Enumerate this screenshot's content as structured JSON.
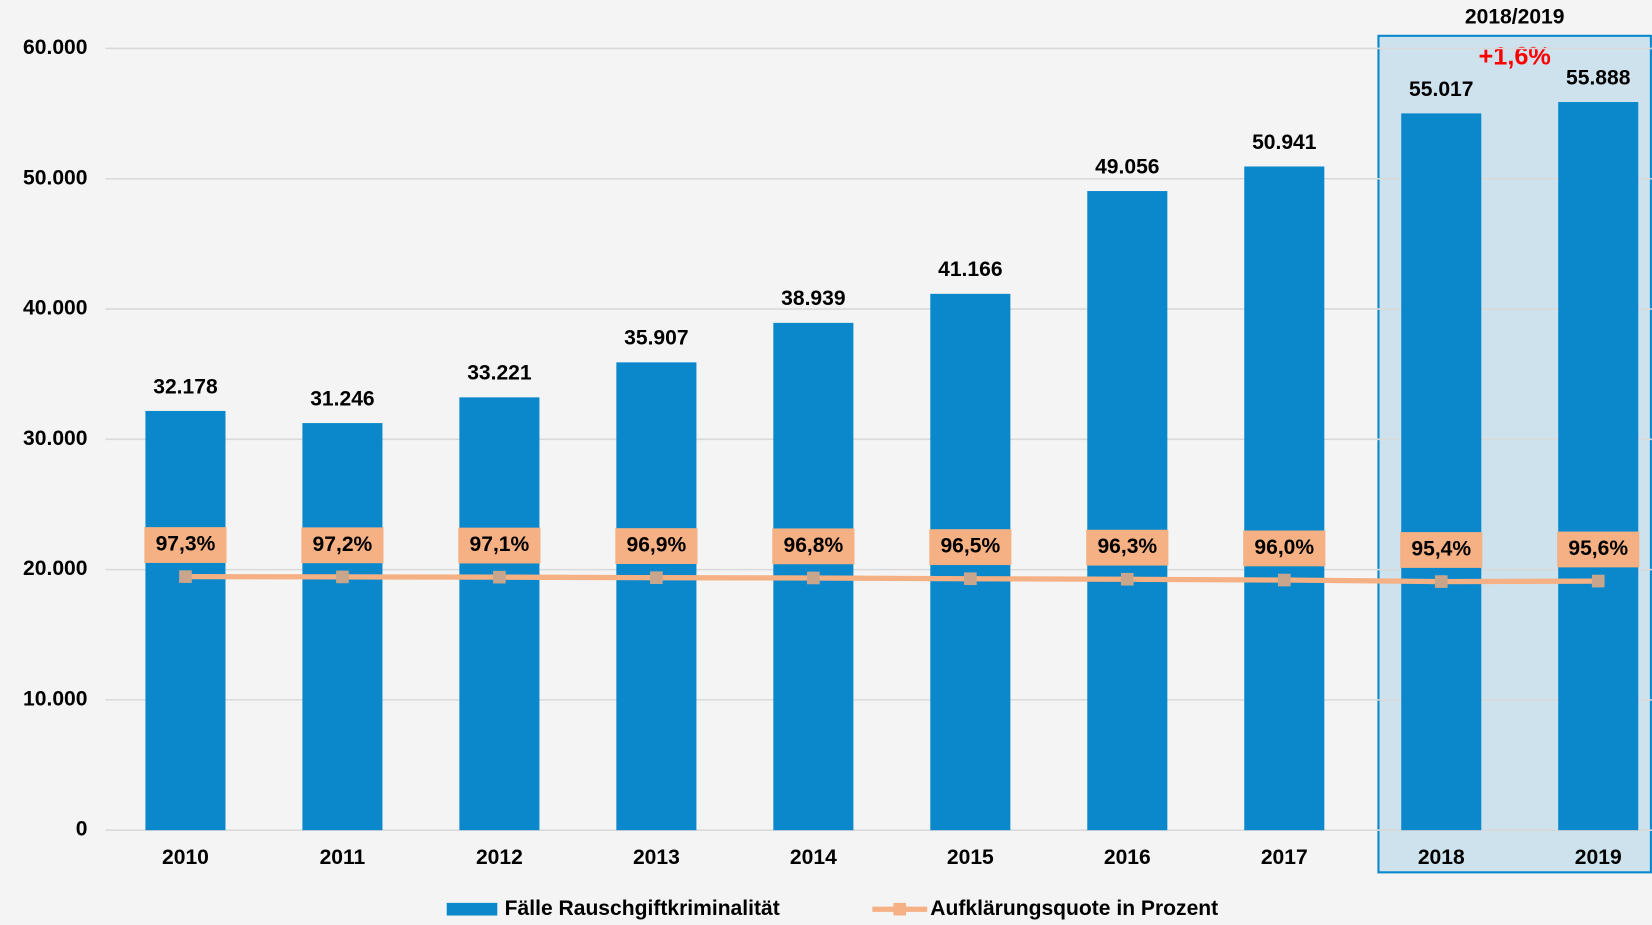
{
  "chart_data": {
    "type": "bar",
    "categories": [
      "2010",
      "2011",
      "2012",
      "2013",
      "2014",
      "2015",
      "2016",
      "2017",
      "2018",
      "2019"
    ],
    "series": [
      {
        "name": "Fälle Rauschgiftkriminalität",
        "type": "bar",
        "color": "#0a88cb",
        "values": [
          32178,
          31246,
          33221,
          35907,
          38939,
          41166,
          49056,
          50941,
          55017,
          55888
        ],
        "value_labels": [
          "32.178",
          "31.246",
          "33.221",
          "35.907",
          "38.939",
          "41.166",
          "49.056",
          "50.941",
          "55.017",
          "55.888"
        ]
      },
      {
        "name": "Aufklärungsquote in Prozent",
        "type": "line",
        "axis": "y2",
        "color": "#f5b183",
        "marker_color": "#c9a68b",
        "values": [
          97.3,
          97.2,
          97.1,
          96.9,
          96.8,
          96.5,
          96.3,
          96.0,
          95.4,
          95.6
        ],
        "value_labels": [
          "97,3%",
          "97,2%",
          "97,1%",
          "96,9%",
          "96,8%",
          "96,5%",
          "96,3%",
          "96,0%",
          "95,4%",
          "95,6%"
        ]
      }
    ],
    "ylim": [
      0,
      60000
    ],
    "yticks": [
      0,
      {
        "value": 10000,
        "label": "10.000"
      },
      {
        "value": 20000,
        "label": "20.000"
      },
      {
        "value": 30000,
        "label": "30.000"
      },
      {
        "value": 40000,
        "label": "40.000"
      },
      {
        "value": 50000,
        "label": "50.000"
      },
      {
        "value": 60000,
        "label": "60.000"
      }
    ],
    "y2lim": [
      0,
      300
    ],
    "grid": true,
    "legend": "bottom",
    "highlight": {
      "label": "2018/2019",
      "change": "+1,6%",
      "color": "#0a88cb"
    }
  }
}
